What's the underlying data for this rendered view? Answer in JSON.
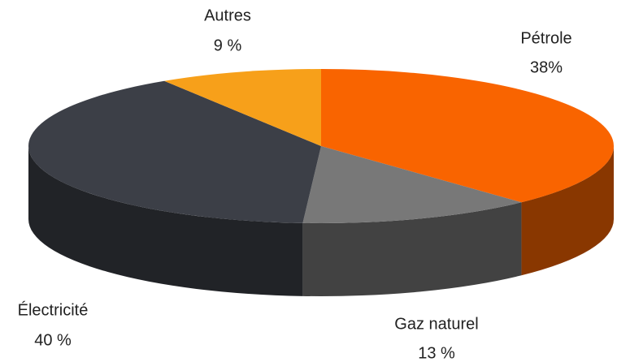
{
  "chart_data": {
    "type": "pie3d",
    "categories": [
      "Pétrole",
      "Gaz naturel",
      "Électricité",
      "Autres"
    ],
    "values": [
      38,
      13,
      40,
      9
    ],
    "value_labels": [
      "38%",
      "13 %",
      "40 %",
      "9 %"
    ],
    "colors": [
      "#f96400",
      "#787878",
      "#3c3f47",
      "#f7a01a"
    ]
  }
}
